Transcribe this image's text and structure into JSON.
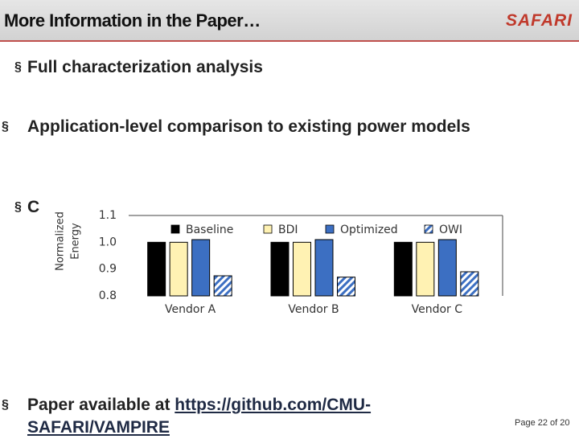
{
  "header": {
    "title": "More Information in the Paper…",
    "logo": "SAFARI"
  },
  "bullet_marker": "§",
  "bullets": [
    "Full characterization analysis",
    "Application-level comparison to existing power models",
    "C"
  ],
  "paper_bullet": {
    "text": "Paper available at",
    "link": "https://github.com/CMU-SAFARI/VAMPIRE"
  },
  "page_number": "Page 22 of 20",
  "chart_data": {
    "type": "bar",
    "ylabel": [
      "Normalized",
      "Energy"
    ],
    "categories": [
      "Vendor A",
      "Vendor B",
      "Vendor C"
    ],
    "series": [
      {
        "name": "Baseline",
        "color": "#000000",
        "values": [
          1.0,
          1.0,
          1.0
        ]
      },
      {
        "name": "BDI",
        "color": "#fff2b3",
        "values": [
          1.0,
          1.0,
          1.0
        ]
      },
      {
        "name": "Optimized",
        "color": "#3c6fc2",
        "values": [
          1.01,
          1.01,
          1.01
        ]
      },
      {
        "name": "OWI",
        "color": "#3c6fc2",
        "pattern": "hatch",
        "values": [
          0.875,
          0.87,
          0.89
        ]
      }
    ],
    "ylim": [
      0.8,
      1.1
    ],
    "yticks": [
      0.8,
      0.9,
      {
        "value": 1,
        "label": "1.0"
      },
      1.1
    ],
    "legend": "top"
  }
}
